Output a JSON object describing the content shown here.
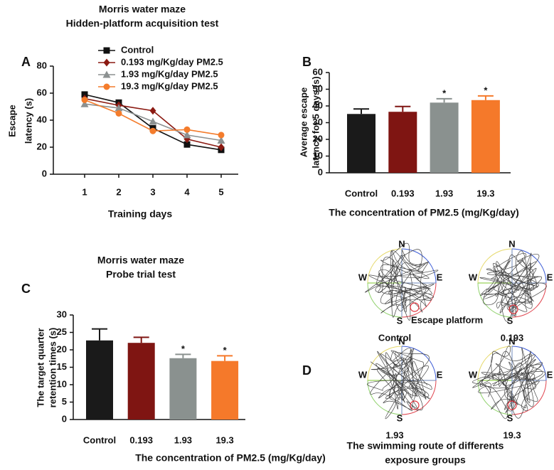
{
  "chart_data": [
    {
      "type": "line",
      "panel": "A",
      "title": [
        "Morris water maze",
        "Hidden-platform acquisition test"
      ],
      "x_label": "Training days",
      "y_label": [
        "Escape",
        "latency (s)"
      ],
      "categories": [
        "1",
        "2",
        "3",
        "4",
        "5"
      ],
      "series": [
        {
          "name": "Control",
          "color": "#111111",
          "marker": "square",
          "values": [
            59,
            53,
            34,
            22,
            18
          ]
        },
        {
          "name": "0.193 mg/Kg/day PM2.5",
          "color": "#8b1a12",
          "marker": "diamond",
          "values": [
            56,
            51,
            47,
            26,
            20
          ]
        },
        {
          "name": "1.93 mg/Kg/day PM2.5",
          "color": "#8c9191",
          "marker": "triangle",
          "values": [
            52,
            49,
            39,
            29,
            25
          ]
        },
        {
          "name": "19.3 mg/Kg/day PM2.5",
          "color": "#f47c2c",
          "marker": "circle",
          "values": [
            55,
            45,
            32,
            33,
            29
          ]
        }
      ],
      "ylim": [
        0,
        80
      ],
      "yticks": [
        0,
        20,
        40,
        60,
        80
      ]
    },
    {
      "type": "bar",
      "panel": "B",
      "x_label": "The concentration of PM2.5 (mg/Kg/day)",
      "y_label": [
        "Average escape",
        "latency for 5 days (s)"
      ],
      "categories": [
        "Control",
        "0.193",
        "1.93",
        "19.3"
      ],
      "values": [
        35.2,
        36.5,
        42,
        43.5
      ],
      "errors": [
        3,
        3.2,
        2.3,
        2.5
      ],
      "colors": [
        "#1a1a1a",
        "#7f1512",
        "#8a918f",
        "#f5792a"
      ],
      "significance": [
        null,
        null,
        "*",
        "*"
      ],
      "ylim": [
        0,
        60
      ],
      "yticks": [
        0,
        10,
        20,
        30,
        40,
        50,
        60
      ]
    },
    {
      "type": "bar",
      "panel": "C",
      "title": [
        "Morris water maze",
        "Probe trial test"
      ],
      "x_label": "The concentration of PM2.5 (mg/Kg/day)",
      "y_label": [
        "The target quarter",
        "retention times (s)"
      ],
      "categories": [
        "Control",
        "0.193",
        "1.93",
        "19.3"
      ],
      "values": [
        22.7,
        22,
        17.6,
        16.8
      ],
      "errors": [
        3.3,
        1.6,
        1.1,
        1.5
      ],
      "colors": [
        "#1a1a1a",
        "#7f1512",
        "#8a918f",
        "#f5792a"
      ],
      "significance": [
        null,
        null,
        "*",
        "*"
      ],
      "ylim": [
        0,
        30
      ],
      "yticks": [
        0,
        5,
        10,
        15,
        20,
        25,
        30
      ]
    }
  ],
  "panel_d": {
    "panel": "D",
    "compass": [
      "N",
      "E",
      "S",
      "W"
    ],
    "groups": [
      "Control",
      "0.193",
      "1.93",
      "19.3"
    ],
    "platform_label": "Escape platform",
    "title": [
      "The swimming route of differents",
      "exposure groups"
    ]
  }
}
